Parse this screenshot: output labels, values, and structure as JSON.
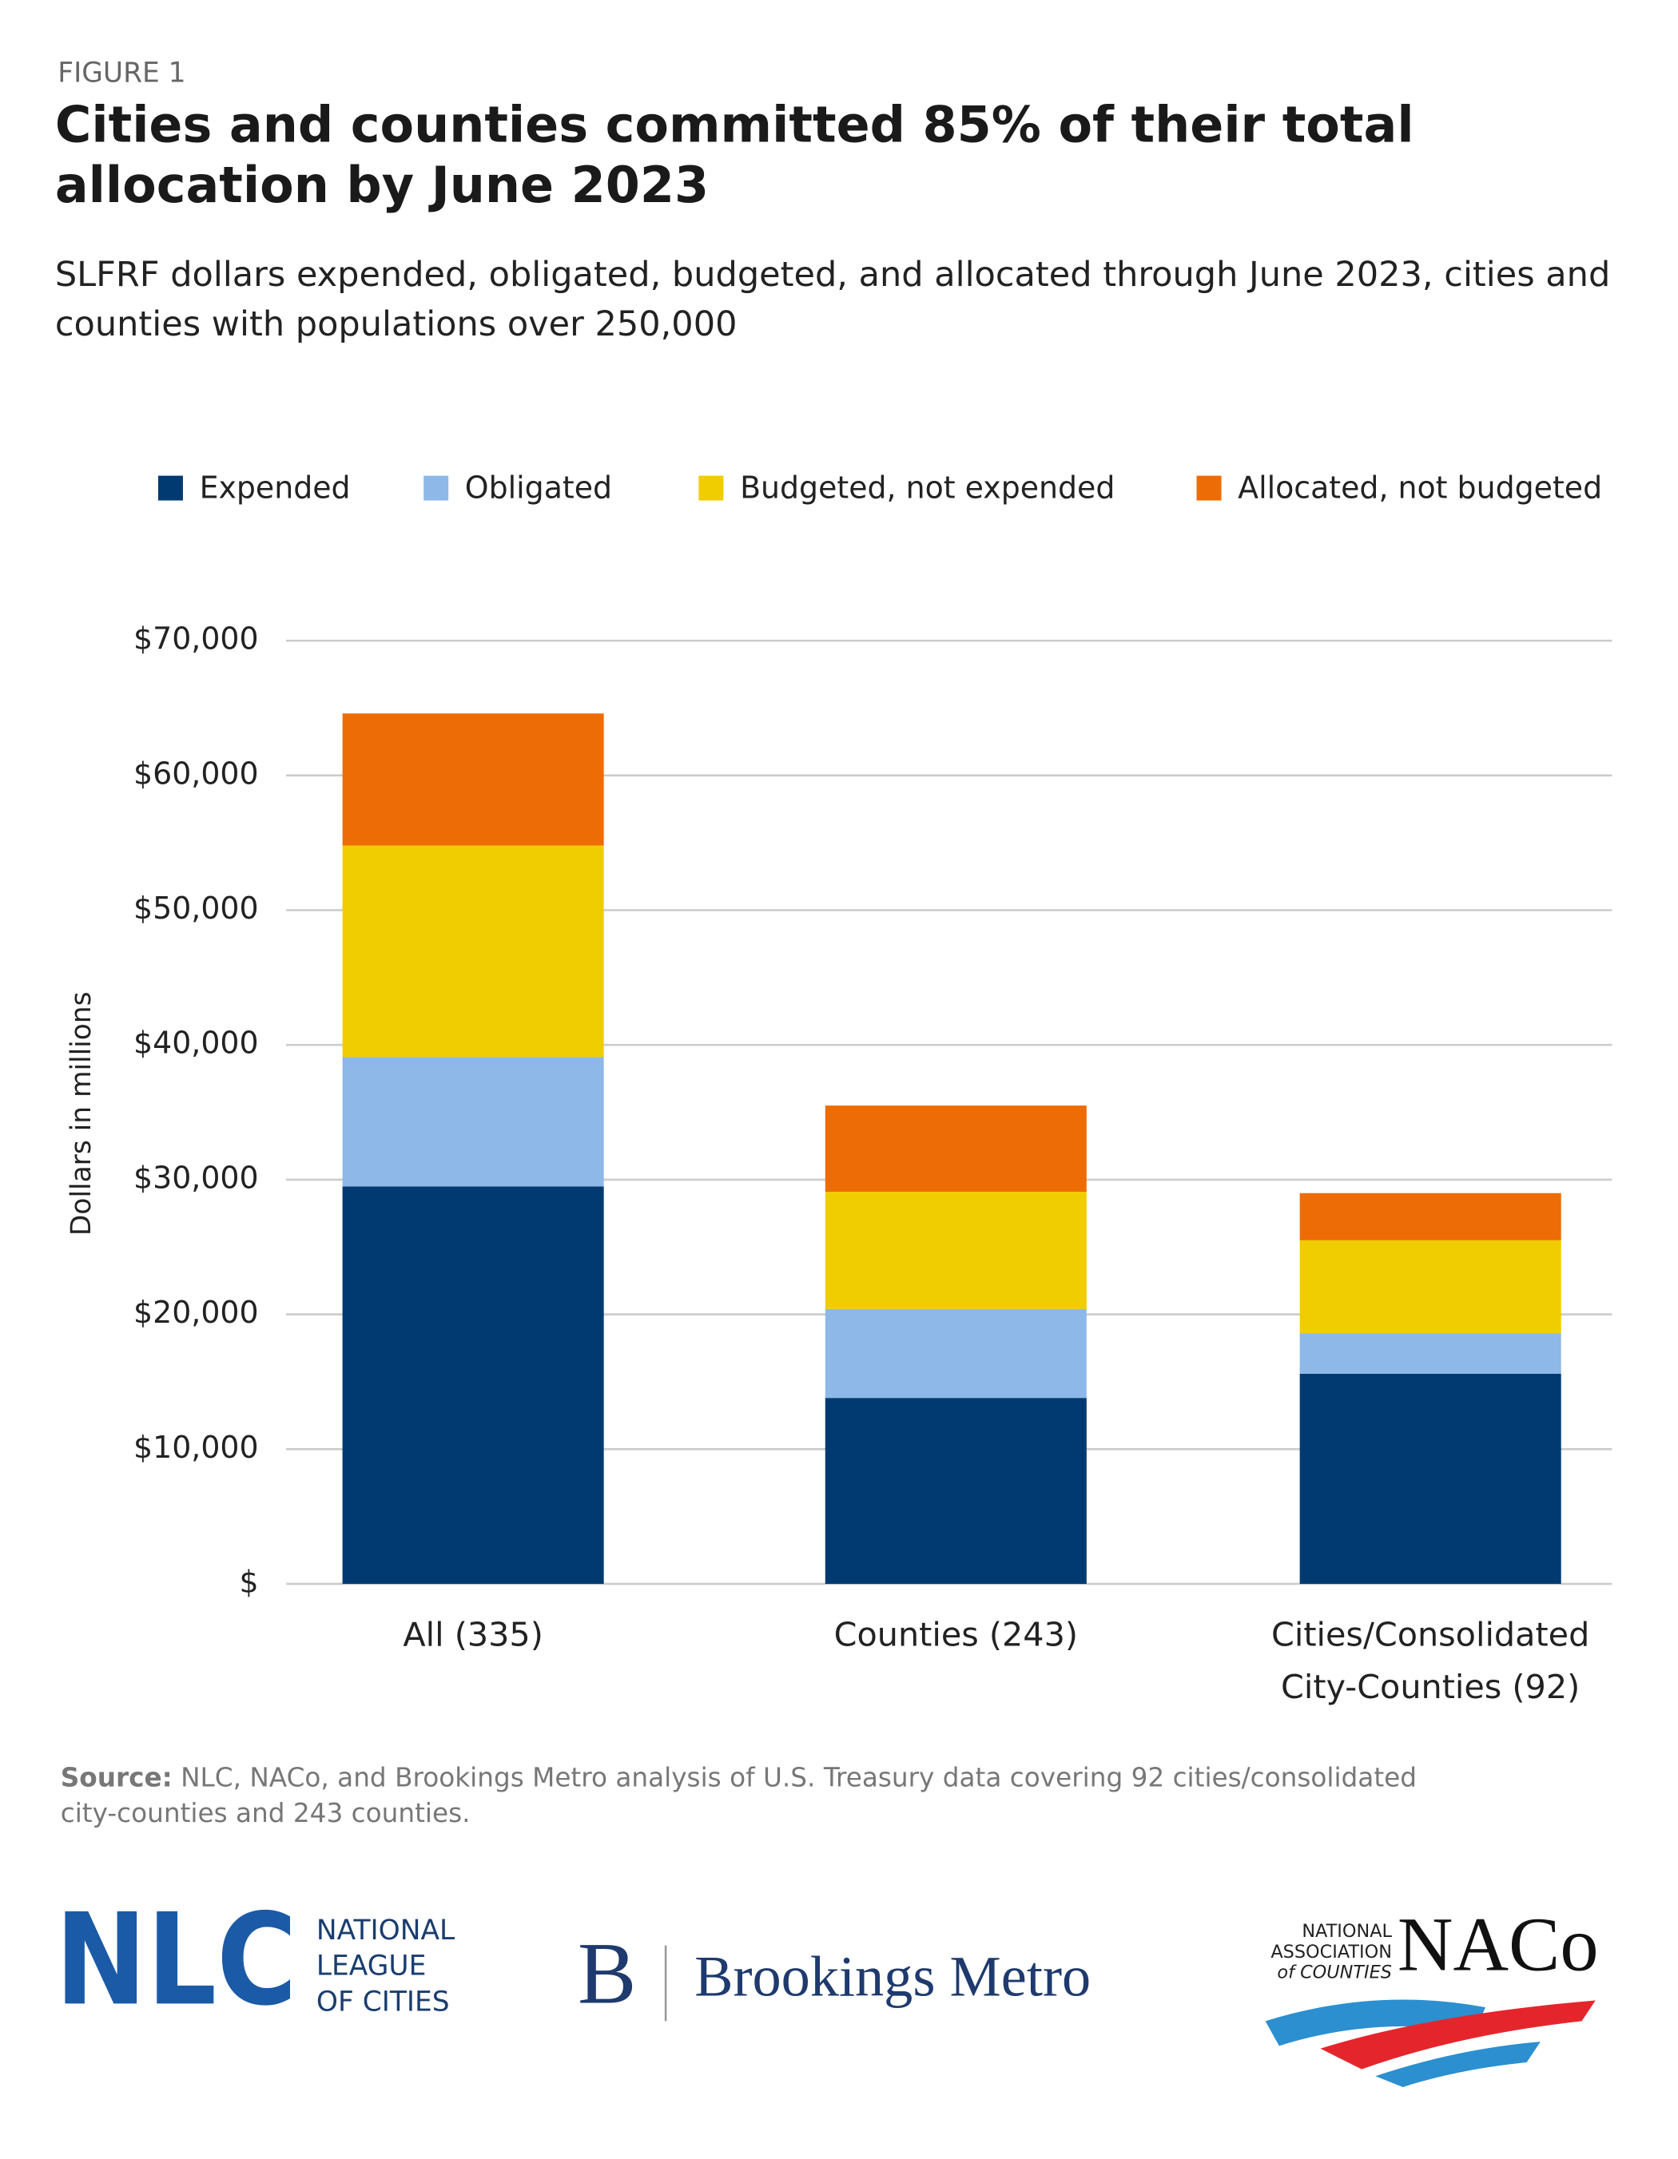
{
  "figure_label": "FIGURE 1",
  "chart_data": {
    "type": "stacked_bar",
    "title": "Cities and counties committed 85% of their total allocation by June 2023",
    "subtitle": "SLFRF dollars expended, obligated, budgeted, and allocated through June 2023, cities and counties with populations over 250,000",
    "y_label": "Dollars in millions",
    "categories": [
      "All (335)",
      "Counties (243)",
      "Cities/Consolidated City-Counties (92)"
    ],
    "series": [
      {
        "name": "Expended",
        "color": "#003a70",
        "values": [
          29500,
          13800,
          15600
        ]
      },
      {
        "name": "Obligated",
        "color": "#8db8e8",
        "values": [
          9600,
          6600,
          3000
        ]
      },
      {
        "name": "Budgeted, not expended",
        "color": "#f0cd00",
        "values": [
          15700,
          8700,
          6900
        ]
      },
      {
        "name": "Allocated, not budgeted",
        "color": "#ee6c05",
        "values": [
          9800,
          6400,
          3500
        ]
      }
    ],
    "ylim": [
      0,
      70000
    ],
    "yticks": [
      {
        "value": 0,
        "label": "$"
      },
      {
        "value": 10000,
        "label": "$10,000"
      },
      {
        "value": 20000,
        "label": "$20,000"
      },
      {
        "value": 30000,
        "label": "$30,000"
      },
      {
        "value": 40000,
        "label": "$40,000"
      },
      {
        "value": 50000,
        "label": "$50,000"
      },
      {
        "value": 60000,
        "label": "$60,000"
      },
      {
        "value": 70000,
        "label": "$70,000"
      }
    ],
    "grid": true,
    "legend": "top"
  },
  "source": {
    "label": "Source:",
    "lines": [
      "NLC, NACo, and Brookings Metro analysis of U.S. Treasury data covering 92 cities/consolidated",
      "city-counties and 243 counties."
    ]
  },
  "logos": {
    "nlc": {
      "mark": "NLC",
      "lines": [
        "NATIONAL",
        "LEAGUE",
        "OF CITIES"
      ]
    },
    "brookings": {
      "mark": "B",
      "name": "Brookings Metro"
    },
    "naco": {
      "lines": [
        "NATIONAL",
        "ASSOCIATION",
        "of COUNTIES"
      ],
      "mark": "NACo"
    }
  }
}
